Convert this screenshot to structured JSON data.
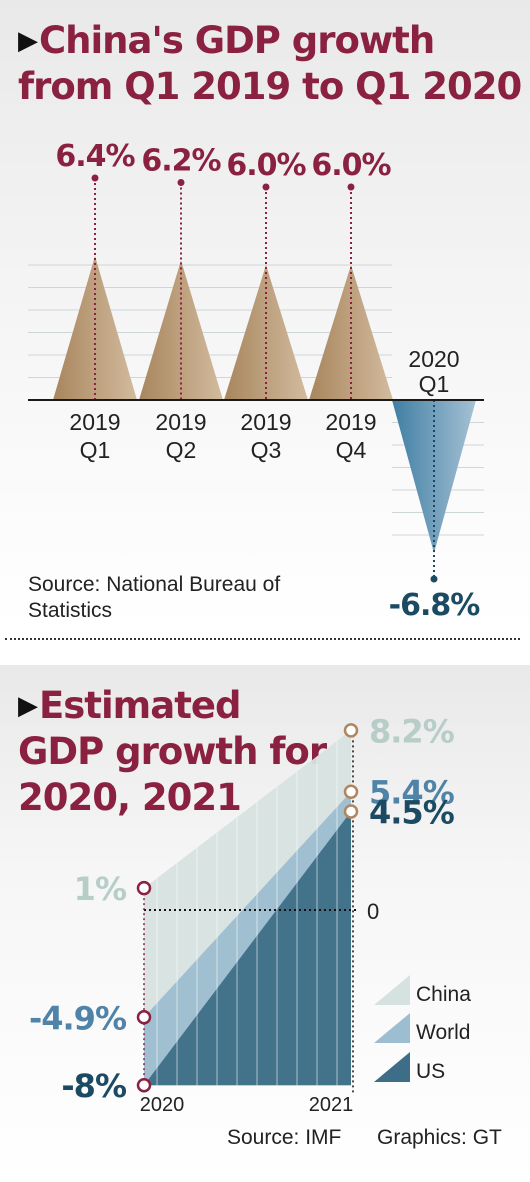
{
  "title1": {
    "line1": "China's GDP growth",
    "line2": "from Q1 2019 to Q1 2020"
  },
  "title2": {
    "line1": "Estimated",
    "line2": "GDP growth for",
    "line3": "2020, 2021"
  },
  "source1": "Source: National Bureau of Statistics",
  "source2": "Source: IMF",
  "credit": "Graphics: GT",
  "colors": {
    "title": "#8a2140",
    "china": "#d6e2e0",
    "world": "#9dbdd0",
    "us": "#3e6e87",
    "q_pos": "#b29470",
    "q_neg": "#4f89ab"
  },
  "chart_data": [
    {
      "type": "bar",
      "title": "China's GDP growth from Q1 2019 to Q1 2020",
      "categories": [
        [
          "2019",
          "Q1"
        ],
        [
          "2019",
          "Q2"
        ],
        [
          "2019",
          "Q3"
        ],
        [
          "2019",
          "Q4"
        ],
        [
          "2020",
          "Q1"
        ]
      ],
      "values": [
        6.4,
        6.2,
        6.0,
        6.0,
        -6.8
      ],
      "value_labels": [
        "6.4%",
        "6.2%",
        "6.0%",
        "6.0%",
        "-6.8%"
      ],
      "grid": true
    },
    {
      "type": "line",
      "title": "Estimated GDP growth for 2020, 2021",
      "x": [
        "2020",
        "2021"
      ],
      "zero_label": "0",
      "series": [
        {
          "name": "China",
          "values": [
            1,
            8.2
          ],
          "labels": [
            "1%",
            "8.2%"
          ],
          "color": "#d6e2e0",
          "label_color": "#b7cdc8"
        },
        {
          "name": "World",
          "values": [
            -4.9,
            5.4
          ],
          "labels": [
            "-4.9%",
            "5.4%"
          ],
          "color": "#9dbdd0",
          "label_color": "#4f84a8"
        },
        {
          "name": "US",
          "values": [
            -8,
            4.5
          ],
          "labels": [
            "-8%",
            "4.5%"
          ],
          "color": "#3e6e87",
          "label_color": "#1b4b63"
        }
      ],
      "legend_position": "bottom-right"
    }
  ]
}
